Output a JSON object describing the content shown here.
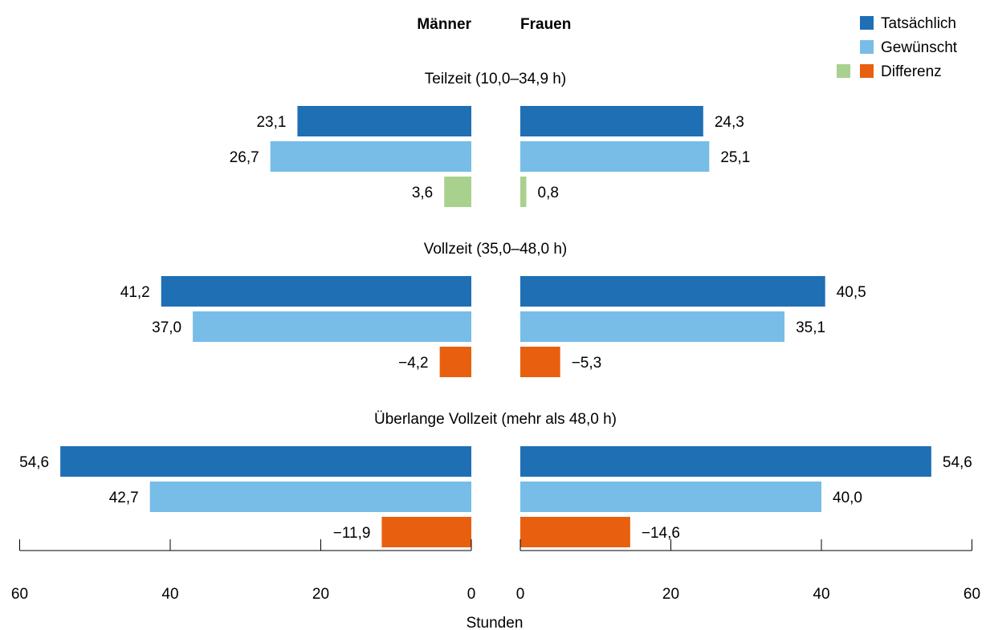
{
  "chart_data": {
    "type": "bar",
    "orientation": "horizontal",
    "layout": "butterfly",
    "side_headers": [
      "Männer",
      "Frauen"
    ],
    "groups": [
      {
        "title": "Teilzeit (10,0–34,9 h)",
        "rows": [
          {
            "series": "Tatsächlich",
            "maenner": 23.1,
            "frauen": 24.3,
            "maenner_label": "23,1",
            "frauen_label": "24,3"
          },
          {
            "series": "Gewünscht",
            "maenner": 26.7,
            "frauen": 25.1,
            "maenner_label": "26,7",
            "frauen_label": "25,1"
          },
          {
            "series": "Differenz",
            "maenner": 3.6,
            "frauen": 0.8,
            "maenner_label": "3,6",
            "frauen_label": "0,8"
          }
        ]
      },
      {
        "title": "Vollzeit (35,0–48,0 h)",
        "rows": [
          {
            "series": "Tatsächlich",
            "maenner": 41.2,
            "frauen": 40.5,
            "maenner_label": "41,2",
            "frauen_label": "40,5"
          },
          {
            "series": "Gewünscht",
            "maenner": 37.0,
            "frauen": 35.1,
            "maenner_label": "37,0",
            "frauen_label": "35,1"
          },
          {
            "series": "Differenz",
            "maenner": -4.2,
            "frauen": -5.3,
            "maenner_label": "−4,2",
            "frauen_label": "−5,3"
          }
        ]
      },
      {
        "title": "Überlange Vollzeit (mehr als 48,0 h)",
        "rows": [
          {
            "series": "Tatsächlich",
            "maenner": 54.6,
            "frauen": 54.6,
            "maenner_label": "54,6",
            "frauen_label": "54,6"
          },
          {
            "series": "Gewünscht",
            "maenner": 42.7,
            "frauen": 40.0,
            "maenner_label": "42,7",
            "frauen_label": "40,0"
          },
          {
            "series": "Differenz",
            "maenner": -11.9,
            "frauen": -14.6,
            "maenner_label": "−11,9",
            "frauen_label": "−14,6"
          }
        ]
      }
    ],
    "legend": {
      "placement": "top-right",
      "entries": [
        {
          "label": "Tatsächlich",
          "colors": [
            "#1f6fb5"
          ]
        },
        {
          "label": "Gewünscht",
          "colors": [
            "#77bde8"
          ]
        },
        {
          "label": "Differenz",
          "colors": [
            "#a9d18e",
            "#e8600f"
          ]
        }
      ]
    },
    "colors": {
      "Tatsächlich": "#1f6fb5",
      "Gewünscht": "#77bde8",
      "Differenz_positive": "#a9d18e",
      "Differenz_negative": "#e8600f",
      "axis": "#000000"
    },
    "xlabel": "Stunden",
    "xlim": [
      0,
      60
    ],
    "ticks": [
      0,
      20,
      40,
      60
    ],
    "tick_labels": [
      "0",
      "20",
      "40",
      "60"
    ],
    "grid": false
  }
}
